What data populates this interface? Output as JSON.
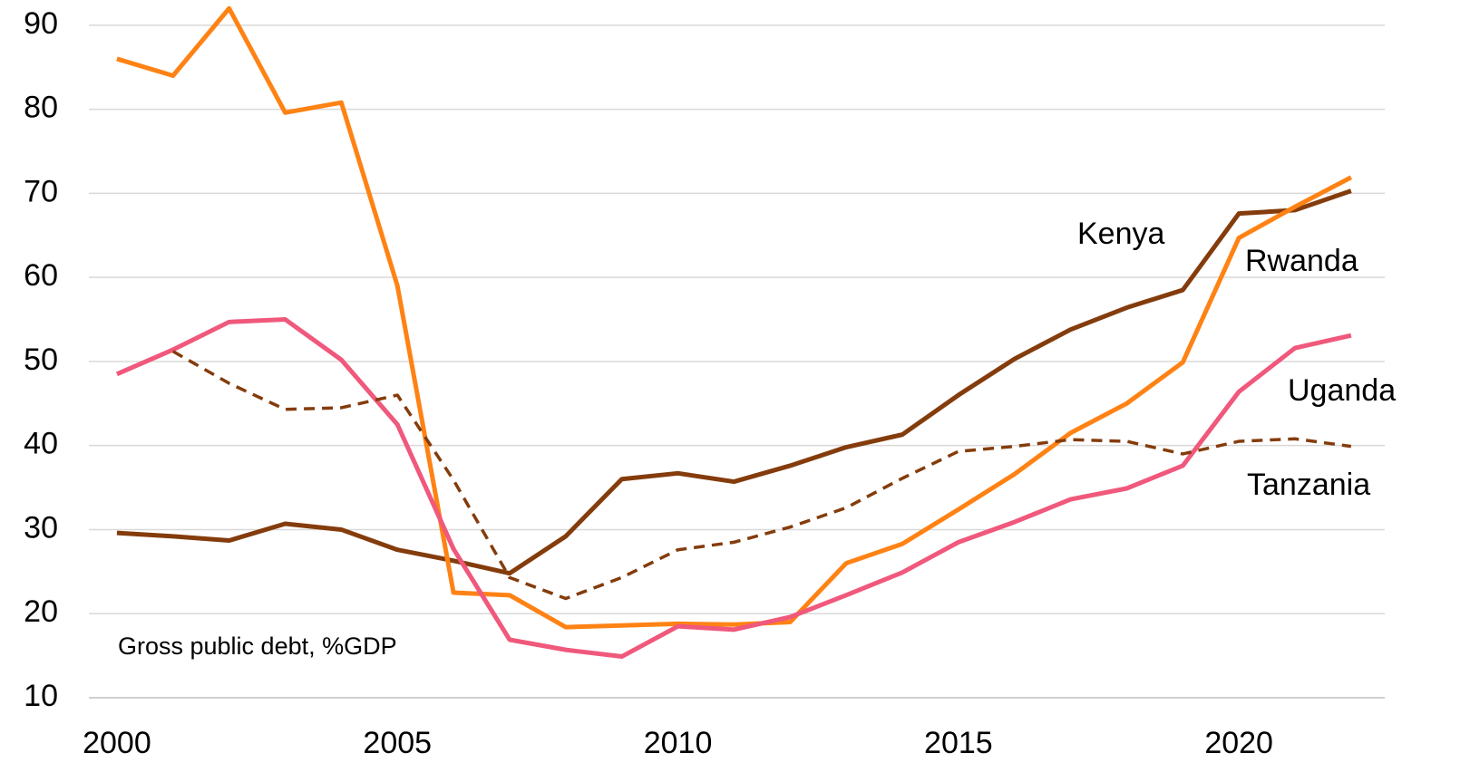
{
  "chart_data": {
    "type": "line",
    "annotation": "Gross public debt, %GDP",
    "x": [
      2000,
      2001,
      2002,
      2003,
      2004,
      2005,
      2006,
      2007,
      2008,
      2009,
      2010,
      2011,
      2012,
      2013,
      2014,
      2015,
      2016,
      2017,
      2018,
      2019,
      2020,
      2021,
      2022
    ],
    "series": [
      {
        "name": "Kenya",
        "color": "#843c0c",
        "dashed": false,
        "values": [
          29.6,
          29.2,
          28.7,
          30.7,
          30.0,
          27.6,
          26.3,
          24.8,
          29.2,
          36.0,
          36.7,
          35.7,
          37.6,
          39.8,
          41.3,
          46.0,
          50.3,
          53.8,
          56.4,
          58.5,
          67.6,
          68.0,
          70.3
        ]
      },
      {
        "name": "Rwanda",
        "color": "#ff8214",
        "dashed": false,
        "values": [
          86.0,
          84.0,
          92.0,
          79.6,
          80.8,
          59.0,
          22.5,
          22.2,
          18.4,
          18.6,
          18.8,
          18.7,
          19.0,
          26.0,
          28.3,
          32.4,
          36.6,
          41.5,
          45.0,
          49.9,
          64.7,
          68.4,
          71.9
        ]
      },
      {
        "name": "Uganda",
        "color": "#f0587c",
        "dashed": false,
        "values": [
          48.5,
          51.4,
          54.7,
          55.0,
          50.2,
          42.5,
          27.7,
          16.9,
          15.7,
          14.9,
          18.5,
          18.1,
          19.6,
          22.2,
          24.9,
          28.5,
          30.9,
          33.6,
          34.9,
          37.6,
          46.4,
          51.6,
          53.1
        ]
      },
      {
        "name": "Tanzania",
        "color": "#843c0c",
        "dashed": true,
        "values": [
          null,
          51.2,
          47.4,
          44.3,
          44.5,
          46.0,
          35.9,
          24.3,
          21.8,
          24.3,
          27.6,
          28.5,
          30.3,
          32.6,
          36.1,
          39.3,
          39.9,
          40.7,
          40.5,
          39.0,
          40.5,
          40.8,
          39.9
        ]
      }
    ],
    "xlim": [
      1999.5,
      2022.6
    ],
    "xticks": [
      2000,
      2005,
      2010,
      2015,
      2020
    ],
    "ylim": [
      10,
      93
    ],
    "yticks": [
      10,
      20,
      30,
      40,
      50,
      60,
      70,
      80,
      90
    ],
    "grid": true
  }
}
